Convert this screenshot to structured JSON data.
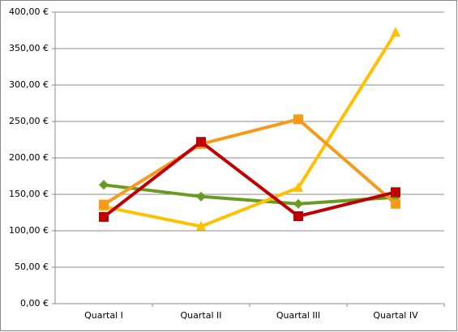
{
  "chart_data": {
    "type": "line",
    "categories": [
      "Quartal I",
      "Quartal II",
      "Quartal III",
      "Quartal IV"
    ],
    "series": [
      {
        "color": "#6a9a1f",
        "marker": "diamond",
        "values": [
          163,
          147,
          137,
          146
        ]
      },
      {
        "color": "#ffc000",
        "marker": "triangle",
        "values": [
          133,
          106,
          159,
          372
        ]
      },
      {
        "color": "#f79a1a",
        "marker": "square",
        "values": [
          136,
          219,
          253,
          137
        ]
      },
      {
        "color": "#c00000",
        "marker": "square",
        "values": [
          119,
          222,
          120,
          153
        ]
      }
    ],
    "ylim": [
      0,
      400
    ],
    "yticks": [
      {
        "value": 0,
        "label": "0,00 €"
      },
      {
        "value": 50,
        "label": "50,00 €"
      },
      {
        "value": 100,
        "label": "100,00 €"
      },
      {
        "value": 150,
        "label": "150,00 €"
      },
      {
        "value": 200,
        "label": "200,00 €"
      },
      {
        "value": 250,
        "label": "250,00 €"
      },
      {
        "value": 300,
        "label": "300,00 €"
      },
      {
        "value": 350,
        "label": "350,00 €"
      },
      {
        "value": 400,
        "label": "400,00 €"
      }
    ],
    "grid": true
  }
}
